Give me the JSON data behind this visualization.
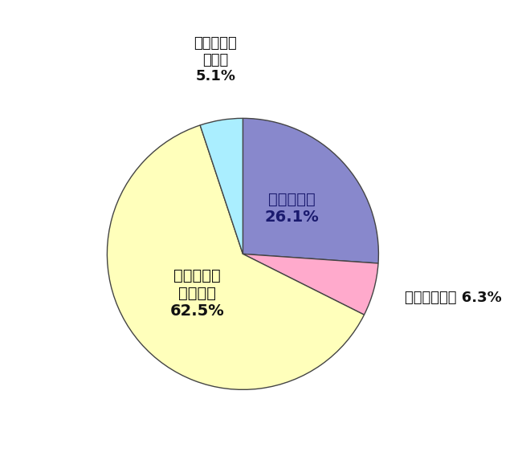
{
  "labels": [
    "感じている",
    "感じていない",
    "どちらともいえない",
    "取り組んでいない"
  ],
  "values": [
    26.1,
    6.3,
    62.5,
    5.1
  ],
  "colors": [
    "#8888cc",
    "#ffaacc",
    "#ffffbb",
    "#aaeeff"
  ],
  "edgecolor": "#444444",
  "startangle": 90,
  "inside_label_fontsize": 14,
  "outside_label_fontsize": 13,
  "background_color": "#ffffff",
  "text_color_blue": "#1a1a6e",
  "text_color_dark": "#111111"
}
